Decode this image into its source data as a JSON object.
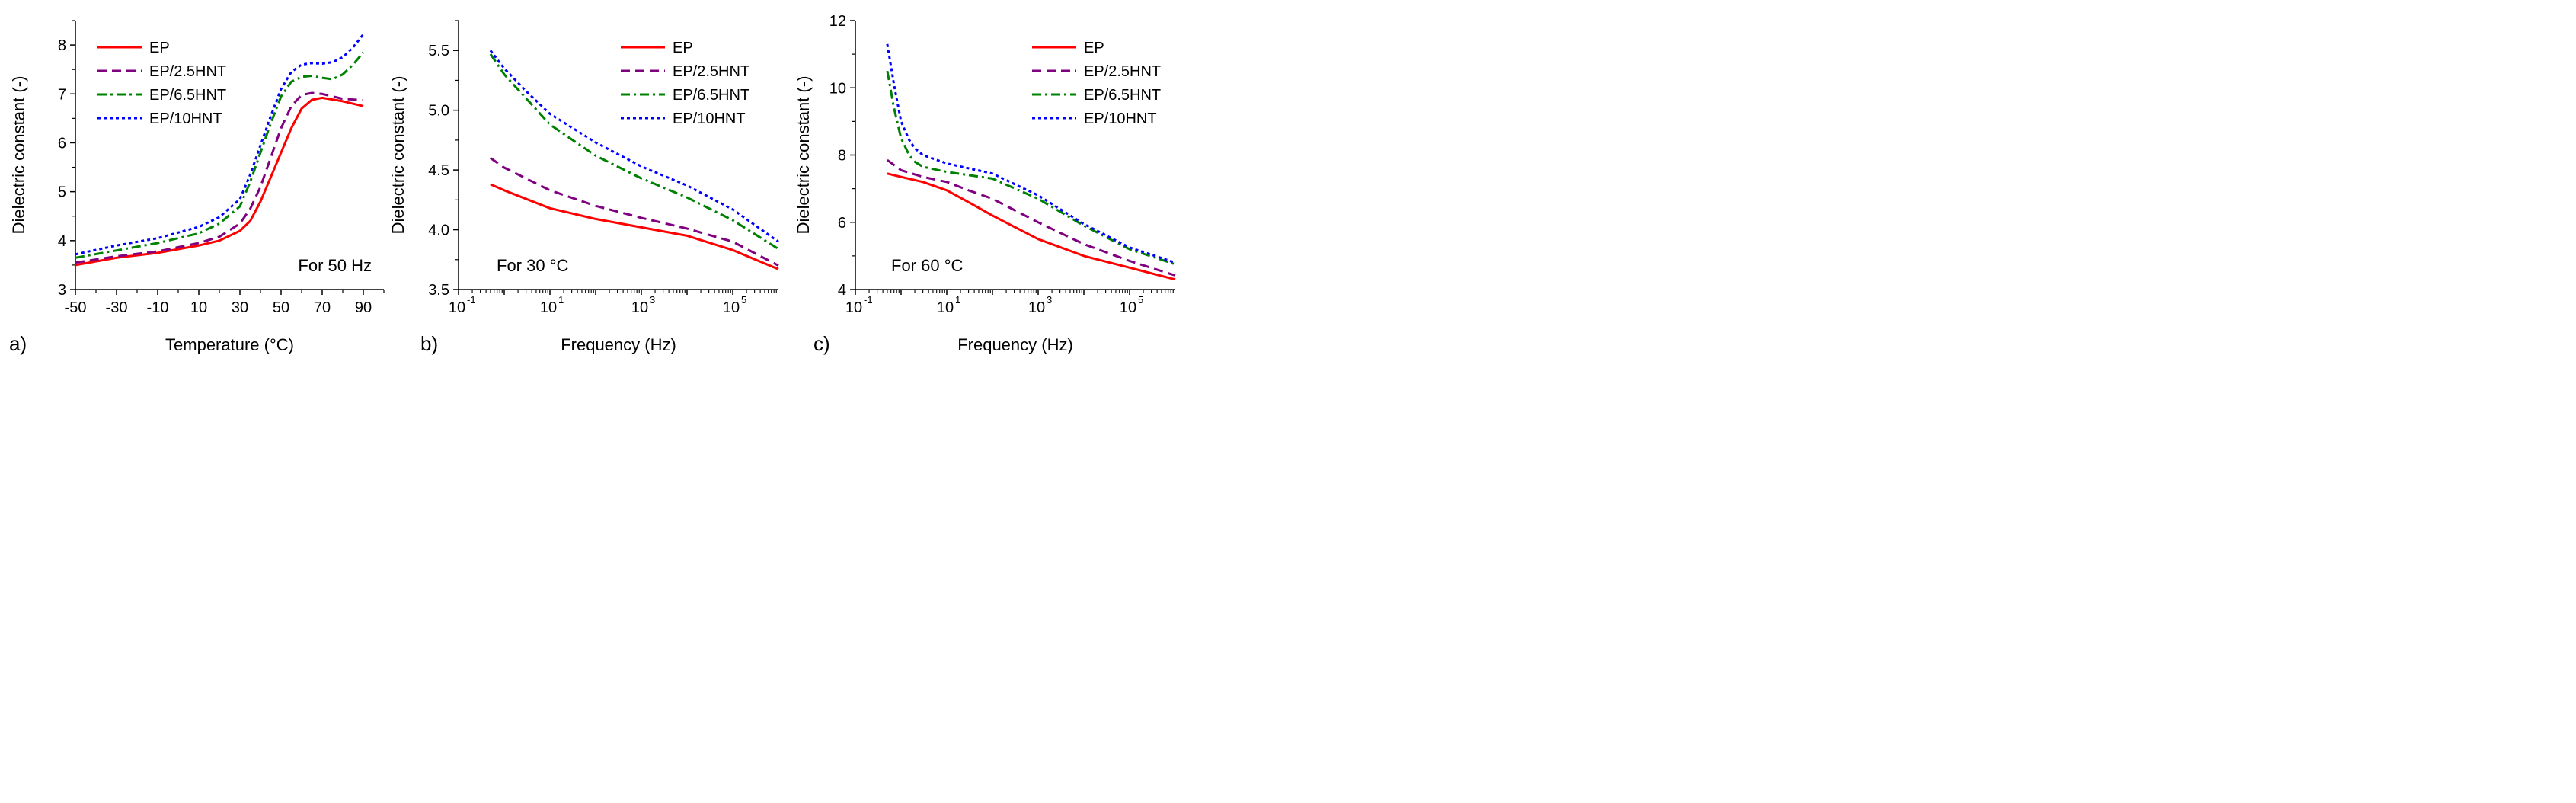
{
  "colors": {
    "EP": "#ff0000",
    "EP/2.5HNT": "#800080",
    "EP/6.5HNT": "#008000",
    "EP/10HNT": "#0000ff"
  },
  "chart_data": [
    {
      "type": "line",
      "panel_tag": "a)",
      "annotation": "For 50 Hz",
      "xlabel": "Temperature (°C)",
      "ylabel": "Dielectric constant (-)",
      "xlim": [
        -50,
        100
      ],
      "ylim": [
        3,
        8.5
      ],
      "x_ticks": [
        -50,
        -30,
        -10,
        10,
        30,
        50,
        70,
        90
      ],
      "x_tick_labels": [
        "-50",
        "-30",
        "-10",
        "10",
        "30",
        "50",
        "70",
        "90"
      ],
      "y_ticks": [
        3,
        4,
        5,
        6,
        7,
        8
      ],
      "y_tick_labels": [
        "3",
        "4",
        "5",
        "6",
        "7",
        "8"
      ],
      "legend_position": "top-left",
      "series": [
        {
          "name": "EP",
          "dash": "solid",
          "x": [
            -50,
            -30,
            -10,
            10,
            20,
            30,
            35,
            40,
            45,
            50,
            55,
            60,
            65,
            70,
            80,
            90
          ],
          "y": [
            3.5,
            3.65,
            3.75,
            3.9,
            4.0,
            4.2,
            4.4,
            4.8,
            5.3,
            5.8,
            6.3,
            6.7,
            6.88,
            6.92,
            6.85,
            6.75
          ]
        },
        {
          "name": "EP/2.5HNT",
          "dash": "dash",
          "x": [
            -50,
            -30,
            -10,
            10,
            20,
            30,
            35,
            40,
            45,
            50,
            55,
            60,
            65,
            70,
            80,
            90
          ],
          "y": [
            3.55,
            3.68,
            3.78,
            3.95,
            4.08,
            4.35,
            4.65,
            5.1,
            5.7,
            6.3,
            6.75,
            6.98,
            7.02,
            7.0,
            6.9,
            6.87
          ]
        },
        {
          "name": "EP/6.5HNT",
          "dash": "dashdot",
          "x": [
            -50,
            -30,
            -10,
            10,
            20,
            30,
            35,
            40,
            45,
            50,
            55,
            60,
            65,
            70,
            75,
            80,
            85,
            90
          ],
          "y": [
            3.65,
            3.8,
            3.95,
            4.15,
            4.35,
            4.7,
            5.2,
            5.8,
            6.4,
            6.95,
            7.25,
            7.35,
            7.37,
            7.33,
            7.3,
            7.4,
            7.6,
            7.85
          ]
        },
        {
          "name": "EP/10HNT",
          "dash": "dot",
          "x": [
            -50,
            -30,
            -10,
            10,
            20,
            30,
            35,
            40,
            45,
            50,
            55,
            60,
            65,
            70,
            75,
            80,
            85,
            90
          ],
          "y": [
            3.72,
            3.9,
            4.05,
            4.28,
            4.48,
            4.85,
            5.35,
            5.95,
            6.55,
            7.1,
            7.45,
            7.6,
            7.63,
            7.62,
            7.65,
            7.75,
            7.95,
            8.22
          ]
        }
      ]
    },
    {
      "type": "line",
      "panel_tag": "b)",
      "annotation": "For 30 °C",
      "xlabel": "Frequency (Hz)",
      "ylabel": "Dielectric constant (-)",
      "xscale": "log",
      "xlim": [
        0.1,
        1000000
      ],
      "ylim": [
        3.5,
        5.75
      ],
      "x_ticks": [
        0.1,
        10,
        1000,
        100000
      ],
      "x_tick_labels": [
        {
          "base": "10",
          "exp": "-1"
        },
        {
          "base": "10",
          "exp": "1"
        },
        {
          "base": "10",
          "exp": "3"
        },
        {
          "base": "10",
          "exp": "5"
        }
      ],
      "y_ticks": [
        3.5,
        4.0,
        4.5,
        5.0,
        5.5
      ],
      "y_tick_labels": [
        "3.5",
        "4.0",
        "4.5",
        "5.0",
        "5.5"
      ],
      "legend_position": "top-right",
      "series": [
        {
          "name": "EP",
          "dash": "solid",
          "x": [
            0.5,
            1,
            10,
            100,
            1000,
            10000,
            100000,
            1000000
          ],
          "y": [
            4.38,
            4.33,
            4.18,
            4.09,
            4.02,
            3.95,
            3.83,
            3.67
          ]
        },
        {
          "name": "EP/2.5HNT",
          "dash": "dash",
          "x": [
            0.5,
            1,
            10,
            100,
            1000,
            10000,
            100000,
            1000000
          ],
          "y": [
            4.6,
            4.52,
            4.33,
            4.2,
            4.1,
            4.01,
            3.9,
            3.7
          ]
        },
        {
          "name": "EP/6.5HNT",
          "dash": "dashdot",
          "x": [
            0.5,
            1,
            3,
            10,
            100,
            1000,
            10000,
            100000,
            1000000
          ],
          "y": [
            5.47,
            5.3,
            5.1,
            4.88,
            4.62,
            4.43,
            4.27,
            4.08,
            3.84
          ]
        },
        {
          "name": "EP/10HNT",
          "dash": "dot",
          "x": [
            0.5,
            1,
            3,
            10,
            100,
            1000,
            10000,
            100000,
            1000000
          ],
          "y": [
            5.5,
            5.35,
            5.16,
            4.97,
            4.73,
            4.53,
            4.37,
            4.17,
            3.9
          ]
        }
      ]
    },
    {
      "type": "line",
      "panel_tag": "c)",
      "annotation": "For 60 °C",
      "xlabel": "Frequency (Hz)",
      "ylabel": "Dielectric constant (-)",
      "xscale": "log",
      "xlim": [
        0.1,
        1000000
      ],
      "ylim": [
        4,
        12
      ],
      "x_ticks": [
        0.1,
        10,
        1000,
        100000
      ],
      "x_tick_labels": [
        {
          "base": "10",
          "exp": "-1"
        },
        {
          "base": "10",
          "exp": "1"
        },
        {
          "base": "10",
          "exp": "3"
        },
        {
          "base": "10",
          "exp": "5"
        }
      ],
      "y_ticks": [
        4,
        6,
        8,
        10,
        12
      ],
      "y_tick_labels": [
        "4",
        "6",
        "8",
        "10",
        "12"
      ],
      "legend_position": "top-right",
      "series": [
        {
          "name": "EP",
          "dash": "solid",
          "x": [
            0.5,
            1,
            3,
            10,
            30,
            100,
            1000,
            10000,
            100000,
            1000000
          ],
          "y": [
            7.45,
            7.35,
            7.2,
            6.95,
            6.6,
            6.2,
            5.5,
            5.0,
            4.65,
            4.3
          ]
        },
        {
          "name": "EP/2.5HNT",
          "dash": "dash",
          "x": [
            0.5,
            1,
            3,
            10,
            30,
            100,
            1000,
            10000,
            100000,
            1000000
          ],
          "y": [
            7.85,
            7.55,
            7.35,
            7.2,
            6.95,
            6.7,
            6.0,
            5.35,
            4.85,
            4.42
          ]
        },
        {
          "name": "EP/6.5HNT",
          "dash": "dashdot",
          "x": [
            0.5,
            0.7,
            1,
            1.5,
            2,
            3,
            10,
            100,
            1000,
            10000,
            100000,
            1000000
          ],
          "y": [
            10.5,
            9.4,
            8.5,
            8.0,
            7.8,
            7.65,
            7.5,
            7.3,
            6.7,
            5.9,
            5.2,
            4.75
          ]
        },
        {
          "name": "EP/10HNT",
          "dash": "dot",
          "x": [
            0.5,
            0.7,
            1,
            1.5,
            2,
            3,
            10,
            100,
            1000,
            10000,
            100000,
            1000000
          ],
          "y": [
            11.3,
            10.1,
            9.0,
            8.45,
            8.2,
            8.0,
            7.75,
            7.45,
            6.8,
            5.95,
            5.25,
            4.8
          ]
        }
      ]
    }
  ]
}
